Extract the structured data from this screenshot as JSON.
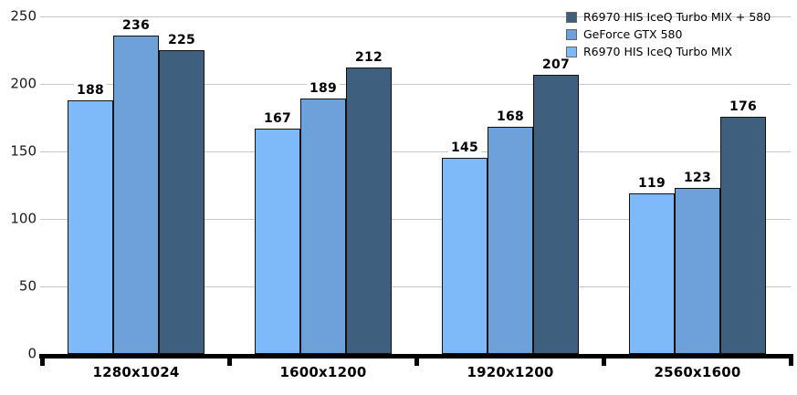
{
  "chart_data": {
    "type": "bar",
    "title": "",
    "xlabel": "",
    "ylabel": "",
    "categories": [
      "1280x1024",
      "1600x1200",
      "1920x1200",
      "2560x1600"
    ],
    "series": [
      {
        "name": "R6970 HIS IceQ Turbo MIX",
        "color": "#7EB9FA",
        "values": [
          188,
          167,
          145,
          119
        ]
      },
      {
        "name": "GeForce GTX 580",
        "color": "#6EA1D9",
        "values": [
          236,
          189,
          168,
          123
        ]
      },
      {
        "name": "R6970 HIS IceQ Turbo MIX + 580",
        "color": "#3E5F7E",
        "values": [
          225,
          212,
          207,
          176
        ]
      }
    ],
    "legend_order": [
      2,
      1,
      0
    ],
    "legend_position": "top-right",
    "ylim": [
      0,
      250
    ],
    "yticks": [
      0,
      50,
      100,
      150,
      200,
      250
    ],
    "grid": true,
    "bar_value_labels": true
  },
  "colors": {
    "background": "#FFFFFF",
    "gridline": "#C6C6C6",
    "axis": "#000000",
    "bar_border": "#111111",
    "value_label_text": "#000000",
    "tick_label_text": "#1A1A1A"
  }
}
